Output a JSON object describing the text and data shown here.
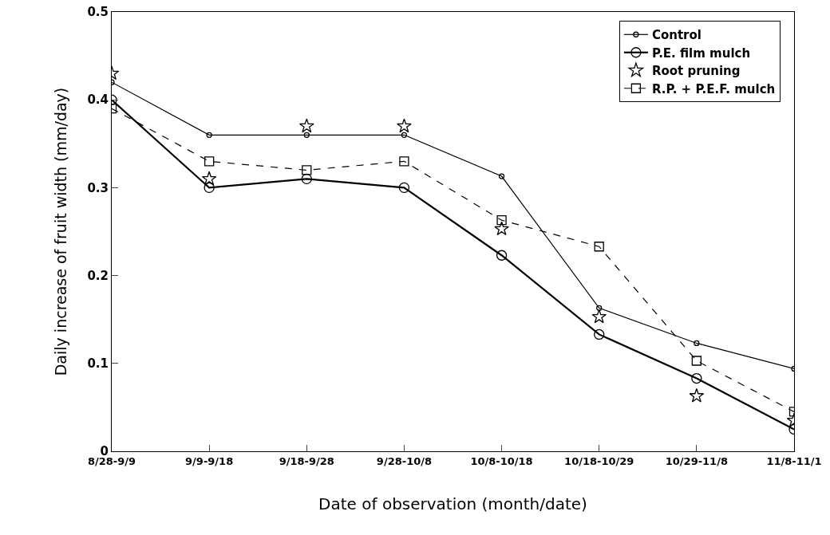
{
  "chart_data": {
    "type": "line",
    "xlabel": "Date of observation (month/date)",
    "ylabel": "Daily increase of fruit width (mm/day)",
    "categories": [
      "8/28-9/9",
      "9/9-9/18",
      "9/18-9/28",
      "9/28-10/8",
      "10/8-10/18",
      "10/18-10/29",
      "10/29-11/8",
      "11/8-11/1"
    ],
    "series": [
      {
        "name": "Control",
        "color": "#000000",
        "marker": "circle",
        "line_style": "solid",
        "values": [
          0.42,
          0.36,
          0.36,
          0.36,
          0.313,
          0.163,
          0.123,
          0.094
        ]
      },
      {
        "name": "P.E. film mulch",
        "color": "#000000",
        "marker": "circle",
        "line_style": "solid",
        "values": [
          0.4,
          0.3,
          0.31,
          0.3,
          0.223,
          0.133,
          0.083,
          0.025
        ]
      },
      {
        "name": "Root pruning",
        "type": "scatter",
        "color": "#000000",
        "marker": "star",
        "values": [
          0.43,
          0.31,
          0.37,
          0.37,
          0.253,
          0.153,
          0.063,
          0.035
        ]
      },
      {
        "name": "R.P. + P.E.F. mulch",
        "color": "#000000",
        "marker": "square",
        "line_style": "dashed",
        "values": [
          0.39,
          0.33,
          0.32,
          0.33,
          0.263,
          0.233,
          0.103,
          0.045
        ]
      }
    ],
    "ylim": [
      0,
      0.5
    ],
    "yticks": [
      {
        "value": 0,
        "label": "0"
      },
      0.1,
      0.2,
      0.3,
      0.4,
      0.5
    ],
    "grid": false,
    "legend": "top right"
  }
}
